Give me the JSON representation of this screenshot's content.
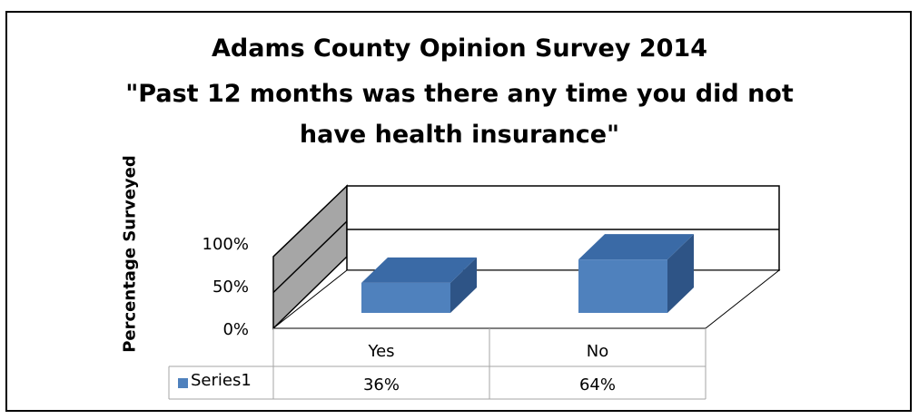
{
  "chart_data": {
    "type": "bar",
    "title_lines": [
      "Adams County Opinion Survey 2014",
      "\"Past 12 months was there any time you did not",
      "have health insurance\""
    ],
    "ylabel": "Percentage Surveyed",
    "xlabel": "",
    "categories": [
      "Yes",
      "No"
    ],
    "series": [
      {
        "name": "Series1",
        "values": [
          36,
          64
        ],
        "value_labels": [
          "36%",
          "64%"
        ]
      }
    ],
    "yticks": [
      "0%",
      "50%",
      "100%"
    ],
    "ylim": [
      0,
      100
    ],
    "grid": true,
    "legend": "data-table",
    "style": "3d-column",
    "colors": {
      "bar": "#4f81bd",
      "bar_top": "#3a6aa6",
      "bar_side": "#2e5486",
      "wall": "#a6a6a6",
      "frame": "#000000"
    }
  }
}
